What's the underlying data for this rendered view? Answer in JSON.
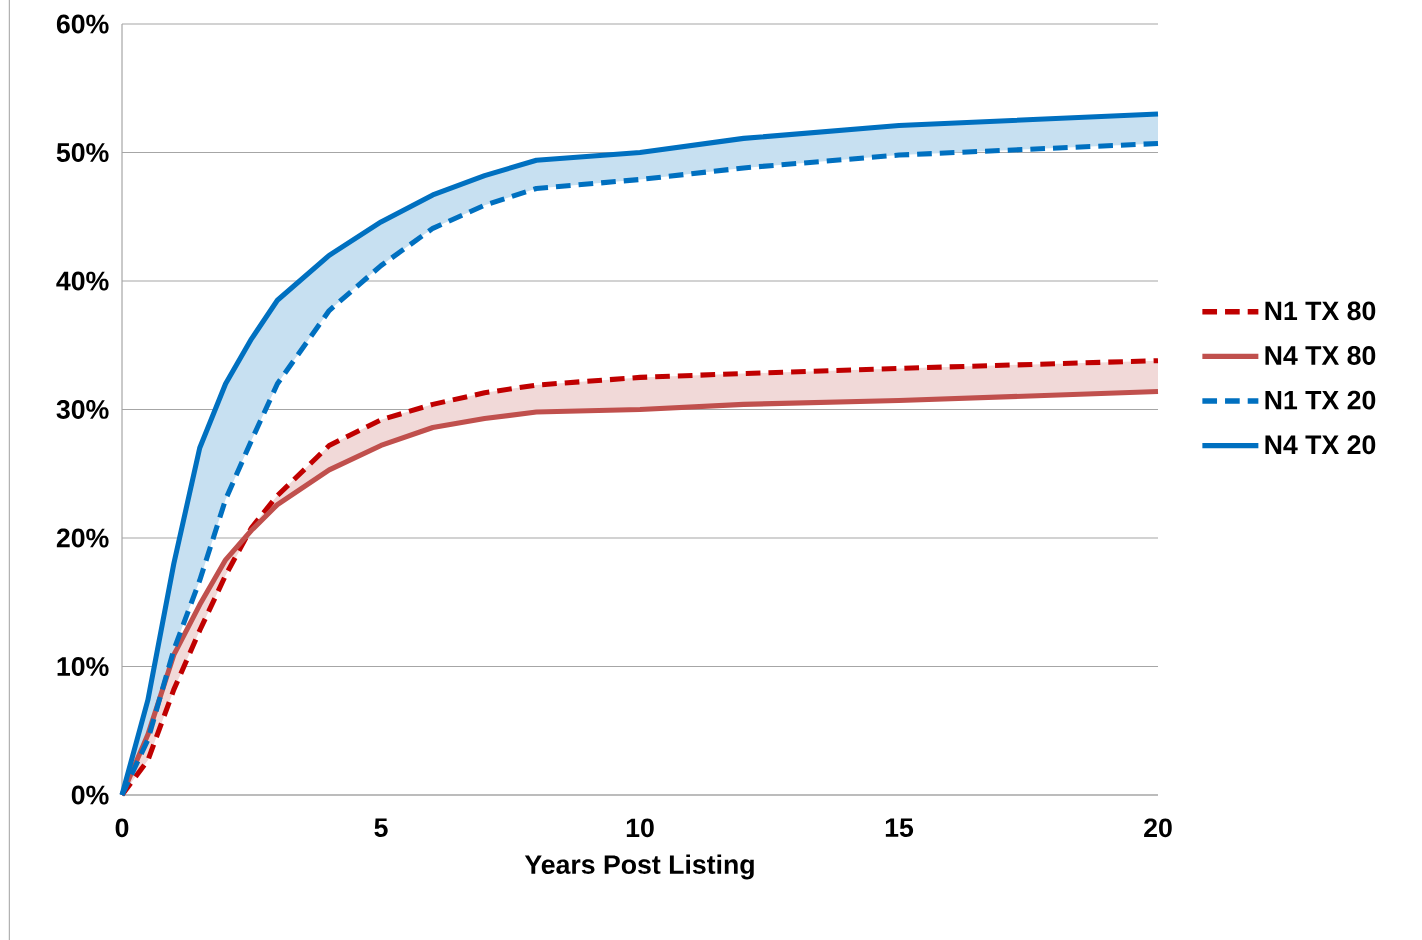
{
  "chart_data": {
    "type": "line",
    "xlabel": "Years Post Listing",
    "x": [
      0,
      0.5,
      1,
      1.5,
      2,
      2.5,
      3,
      4,
      5,
      6,
      7,
      8,
      10,
      12,
      15,
      20
    ],
    "series": [
      {
        "name": "N1 TX 80",
        "color": "#c00000",
        "line_style": "dashed",
        "values": [
          0,
          2.7,
          8.2,
          12.8,
          17.1,
          20.8,
          23.3,
          27.2,
          29.2,
          30.4,
          31.3,
          31.9,
          32.5,
          32.8,
          33.2,
          33.8
        ]
      },
      {
        "name": "N4 TX 80",
        "color": "#c0504d",
        "line_style": "solid",
        "values": [
          0,
          4.7,
          10.9,
          14.8,
          18.3,
          20.6,
          22.6,
          25.3,
          27.2,
          28.6,
          29.3,
          29.8,
          30.0,
          30.4,
          30.7,
          31.4
        ],
        "lower": [
          0,
          2.7,
          8.2,
          12.8,
          17.1,
          20.6,
          22.6,
          25.3,
          27.2,
          28.6,
          29.3,
          29.8,
          30.0,
          30.4,
          30.7,
          31.4
        ],
        "upper": [
          0,
          4.7,
          10.9,
          14.8,
          18.3,
          20.8,
          23.3,
          27.2,
          29.2,
          30.4,
          31.3,
          31.9,
          32.5,
          32.8,
          33.2,
          33.8
        ]
      },
      {
        "name": "N1 TX 20",
        "color": "#0070c0",
        "line_style": "dashed",
        "values": [
          0,
          4.3,
          11.3,
          16.7,
          23,
          27.6,
          32,
          37.7,
          41.2,
          44.1,
          45.9,
          47.2,
          47.9,
          48.8,
          49.8,
          50.7
        ]
      },
      {
        "name": "N4 TX 20",
        "color": "#0070c0",
        "line_style": "solid",
        "values": [
          0,
          7.4,
          18,
          27,
          32,
          35.5,
          38.5,
          42,
          44.6,
          46.7,
          48.2,
          49.4,
          50,
          51.1,
          52.1,
          53
        ],
        "lower": [
          0,
          4.3,
          11.3,
          16.7,
          23,
          27.6,
          32,
          37.7,
          41.2,
          44.1,
          45.9,
          47.2,
          47.9,
          48.8,
          49.8,
          50.7
        ],
        "upper": [
          0,
          7.4,
          18,
          27,
          32,
          35.5,
          38.5,
          42,
          44.6,
          46.7,
          48.2,
          49.4,
          50,
          51.1,
          52.1,
          53
        ]
      }
    ],
    "xlim": [
      0,
      20
    ],
    "xticks": [
      0,
      5,
      10,
      15,
      20
    ],
    "ylim": [
      0,
      60
    ],
    "yticks": [
      {
        "value": 0,
        "label": "0%"
      },
      {
        "value": 10,
        "label": "10%"
      },
      {
        "value": 20,
        "label": "20%"
      },
      {
        "value": 30,
        "label": "30%"
      },
      {
        "value": 40,
        "label": "40%"
      },
      {
        "value": 50,
        "label": "50%"
      },
      {
        "value": 60,
        "label": "60%"
      }
    ],
    "grid": "y",
    "legend": "right",
    "marker": "none"
  }
}
